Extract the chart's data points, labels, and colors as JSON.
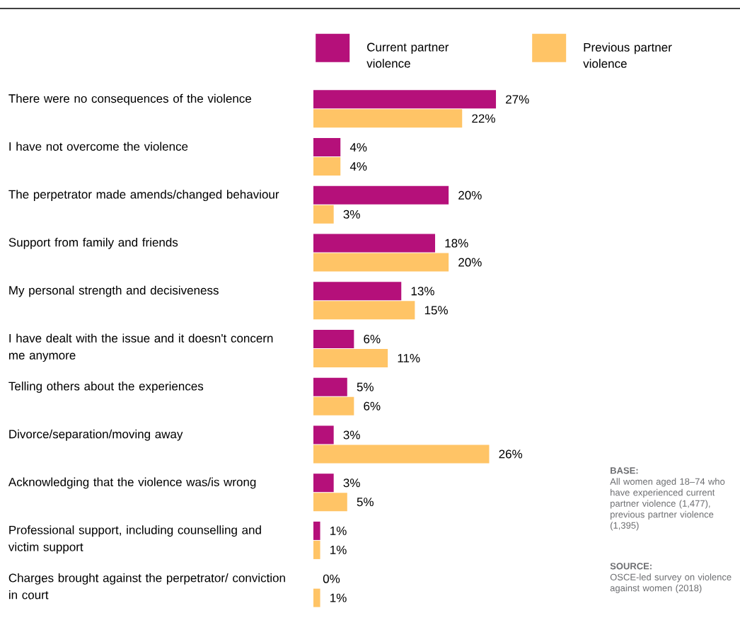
{
  "chart_data": {
    "type": "bar",
    "orientation": "horizontal",
    "legend": "top",
    "categories": [
      "There were no consequences of the violence",
      "I have not overcome the violence",
      "The perpetrator made amends/changed behaviour",
      "Support from family and friends",
      "My personal strength and decisiveness",
      "I have dealt with the issue and it doesn't concern me anymore",
      "Telling others about the experiences",
      "Divorce/separation/moving away",
      "Acknowledging that the violence was/is wrong",
      "Professional support, including counselling and victim support",
      "Charges brought against the perpetrator/ conviction in court"
    ],
    "series": [
      {
        "name": "Current partner violence",
        "color": "#b5107a",
        "values": [
          27,
          4,
          20,
          18,
          13,
          6,
          5,
          3,
          3,
          1,
          0
        ],
        "value_labels": [
          "27%",
          "4%",
          "20%",
          "18%",
          "13%",
          "6%",
          "5%",
          "3%",
          "3%",
          "1%",
          "0%"
        ]
      },
      {
        "name": "Previous partner violence",
        "color": "#ffc466",
        "values": [
          22,
          4,
          3,
          20,
          15,
          11,
          6,
          26,
          5,
          1,
          1
        ],
        "value_labels": [
          "22%",
          "4%",
          "3%",
          "20%",
          "15%",
          "11%",
          "6%",
          "26%",
          "5%",
          "1%",
          "1%"
        ]
      }
    ],
    "annotations": [
      "BASE:",
      "All women aged 18–74 who have experienced current partner violence (1,477), previous partner violence (1,395)",
      "SOURCE:",
      "OSCE-led survey on violence against women (2018)"
    ]
  }
}
